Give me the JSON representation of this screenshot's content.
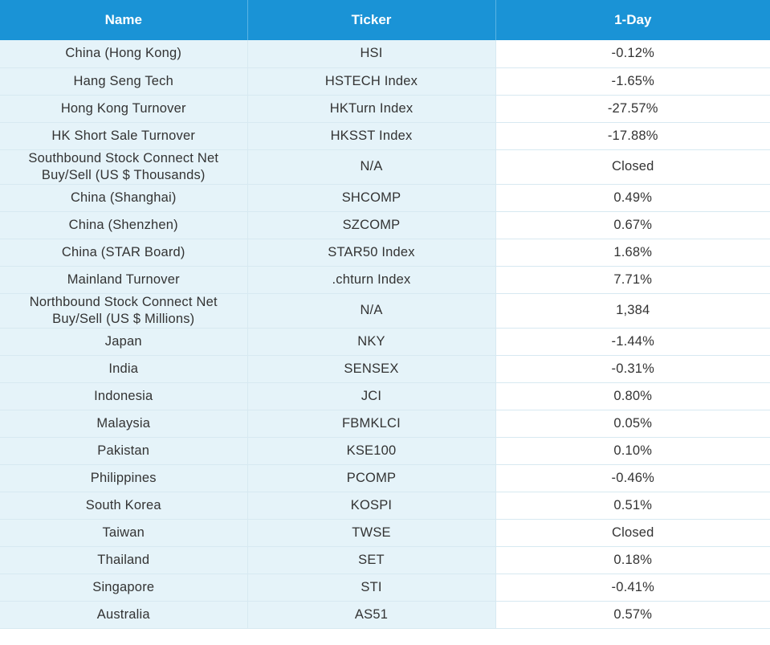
{
  "table": {
    "headers": [
      "Name",
      "Ticker",
      "1-Day"
    ],
    "rows": [
      {
        "name": "China (Hong Kong)",
        "ticker": "HSI",
        "change": "-0.12%"
      },
      {
        "name": "Hang Seng Tech",
        "ticker": "HSTECH Index",
        "change": "-1.65%"
      },
      {
        "name": "Hong Kong Turnover",
        "ticker": "HKTurn Index",
        "change": "-27.57%"
      },
      {
        "name": "HK Short Sale Turnover",
        "ticker": "HKSST Index",
        "change": "-17.88%"
      },
      {
        "name": "Southbound Stock Connect Net Buy/Sell (US $ Thousands)",
        "ticker": "N/A",
        "change": "Closed"
      },
      {
        "name": "China (Shanghai)",
        "ticker": "SHCOMP",
        "change": "0.49%"
      },
      {
        "name": "China (Shenzhen)",
        "ticker": "SZCOMP",
        "change": "0.67%"
      },
      {
        "name": "China (STAR Board)",
        "ticker": "STAR50 Index",
        "change": "1.68%"
      },
      {
        "name": "Mainland Turnover",
        "ticker": ".chturn Index",
        "change": "7.71%"
      },
      {
        "name": "Northbound Stock Connect Net Buy/Sell (US $ Millions)",
        "ticker": "N/A",
        "change": "1,384"
      },
      {
        "name": "Japan",
        "ticker": "NKY",
        "change": "-1.44%"
      },
      {
        "name": "India",
        "ticker": "SENSEX",
        "change": "-0.31%"
      },
      {
        "name": "Indonesia",
        "ticker": "JCI",
        "change": "0.80%"
      },
      {
        "name": "Malaysia",
        "ticker": "FBMKLCI",
        "change": "0.05%"
      },
      {
        "name": "Pakistan",
        "ticker": "KSE100",
        "change": "0.10%"
      },
      {
        "name": "Philippines",
        "ticker": "PCOMP",
        "change": "-0.46%"
      },
      {
        "name": "South Korea",
        "ticker": "KOSPI",
        "change": "0.51%"
      },
      {
        "name": "Taiwan",
        "ticker": "TWSE",
        "change": "Closed"
      },
      {
        "name": "Thailand",
        "ticker": "SET",
        "change": "0.18%"
      },
      {
        "name": "Singapore",
        "ticker": "STI",
        "change": "-0.41%"
      },
      {
        "name": "Australia",
        "ticker": "AS51",
        "change": "0.57%"
      }
    ]
  }
}
